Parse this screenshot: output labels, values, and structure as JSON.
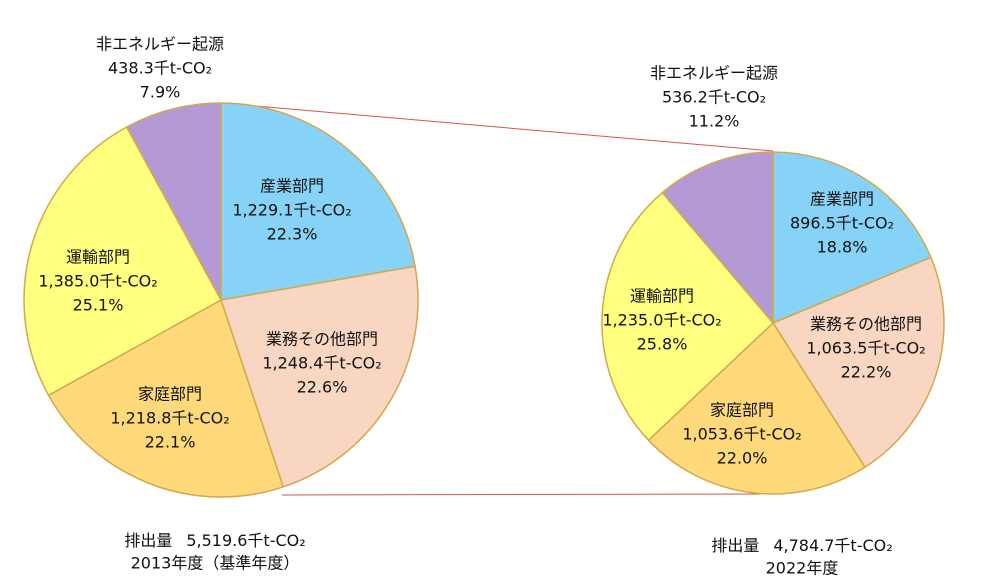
{
  "chart_data": [
    {
      "type": "pie",
      "categories": [
        "産業部門",
        "業務その他部門",
        "家庭部門",
        "運輸部門",
        "非エネルギー起源"
      ],
      "colors": [
        "#87d3f8",
        "#f8d6c2",
        "#ffd97a",
        "#ffff80",
        "#b49ad4"
      ],
      "values": [
        1229.1,
        1248.4,
        1218.8,
        1385.0,
        438.3
      ],
      "value_labels": [
        "1,229.1千t-CO₂",
        "1,248.4千t-CO₂",
        "1,218.8千t-CO₂",
        "1,385.0千t-CO₂",
        "438.3千t-CO₂"
      ],
      "percentages": [
        22.3,
        22.6,
        22.1,
        25.1,
        7.9
      ],
      "percentage_labels": [
        "22.3%",
        "22.6%",
        "22.1%",
        "25.1%",
        "7.9%"
      ],
      "total_label": "排出量",
      "total": 5519.6,
      "total_value_label": "5,519.6千t-CO₂",
      "caption": "2013年度（基準年度）"
    },
    {
      "type": "pie",
      "categories": [
        "産業部門",
        "業務その他部門",
        "家庭部門",
        "運輸部門",
        "非エネルギー起源"
      ],
      "colors": [
        "#87d3f8",
        "#f8d6c2",
        "#ffd97a",
        "#ffff80",
        "#b49ad4"
      ],
      "values": [
        896.5,
        1063.5,
        1053.6,
        1235.0,
        536.2
      ],
      "value_labels": [
        "896.5千t-CO₂",
        "1,063.5千t-CO₂",
        "1,053.6千t-CO₂",
        "1,235.0千t-CO₂",
        "536.2千t-CO₂"
      ],
      "percentages": [
        18.8,
        22.2,
        22.0,
        25.8,
        11.2
      ],
      "percentage_labels": [
        "18.8%",
        "22.2%",
        "22.0%",
        "25.8%",
        "11.2%"
      ],
      "total_label": "排出量",
      "total": 4784.7,
      "total_value_label": "4,784.7千t-CO₂",
      "caption": "2022年度"
    }
  ]
}
